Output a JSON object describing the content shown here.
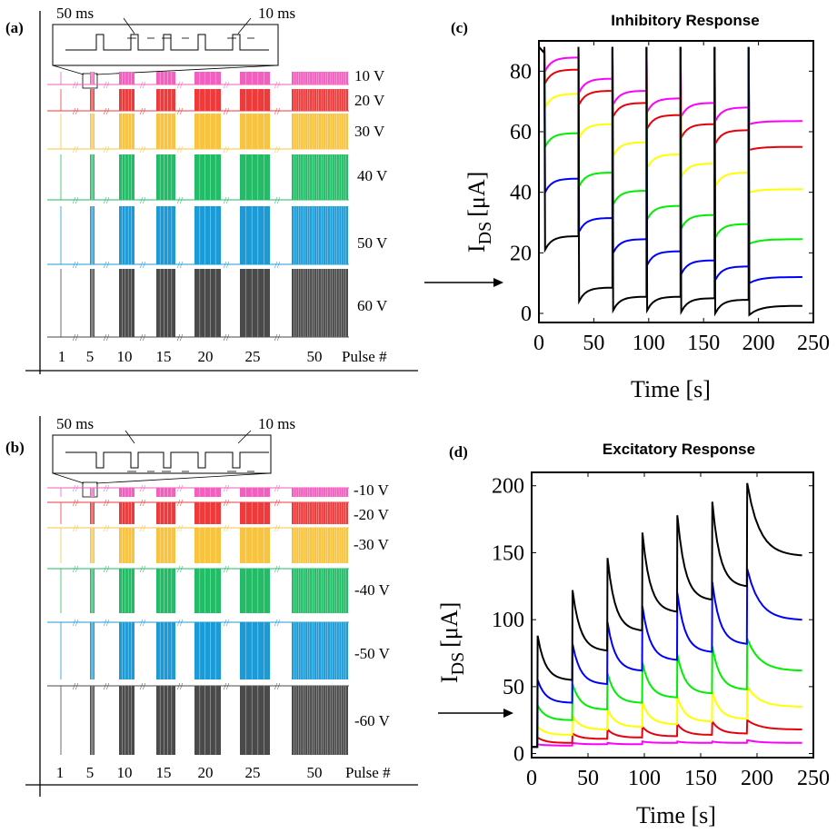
{
  "panels": {
    "a": {
      "label": "(a)",
      "inset_left_label": "50 ms",
      "inset_right_label": "10 ms",
      "voltages": [
        "10 V",
        "20 V",
        "30 V",
        "40 V",
        "50 V",
        "60 V"
      ],
      "pulse_labels": [
        "1",
        "5",
        "10",
        "15",
        "20",
        "25",
        "50"
      ],
      "pulse_axis_label": "Pulse #"
    },
    "b": {
      "label": "(b)",
      "inset_left_label": "50 ms",
      "inset_right_label": "10 ms",
      "voltages": [
        "-10 V",
        "-20 V",
        "-30 V",
        "-40 V",
        "-50 V",
        "-60 V"
      ],
      "pulse_labels": [
        "1",
        "5",
        "10",
        "15",
        "20",
        "25",
        "50"
      ],
      "pulse_axis_label": "Pulse #"
    }
  },
  "colors": {
    "magenta": "#ff00ff",
    "red": "#e8000b",
    "yellow": "#ffff00",
    "green": "#00ee00",
    "blue": "#0000ff",
    "black": "#000000",
    "pink_pulse": "#f25fbf",
    "red_pulse": "#ee3a3a",
    "yellow_pulse": "#f8c440",
    "green_pulse": "#22bb66",
    "blue_pulse": "#1c9ad6",
    "gray_pulse": "#4a4a4a"
  },
  "chart_data": [
    {
      "panel": "c",
      "panel_label": "(c)",
      "type": "line",
      "title": "Inhibitory Response",
      "xlabel": "Time [s]",
      "ylabel_main": "I",
      "ylabel_sub": "DS",
      "ylabel_unit": "[μA]",
      "xlim": [
        0,
        250
      ],
      "ylim": [
        -3,
        90
      ],
      "xticks": [
        0,
        50,
        100,
        150,
        200,
        250
      ],
      "yticks": [
        0,
        20,
        40,
        60,
        80
      ],
      "pulse_times": [
        5,
        36,
        67,
        98,
        129,
        160,
        191
      ],
      "series": [
        {
          "color": "#ff00ff",
          "pre": 88,
          "levels": [
            82,
            75,
            71,
            68.5,
            67,
            65.5,
            64.5
          ],
          "tail_end": 63.5,
          "dip": 0
        },
        {
          "color": "#e8000b",
          "pre": 88,
          "levels": [
            78,
            71,
            67,
            63,
            60,
            58,
            56
          ],
          "tail_end": 55,
          "dip": -3
        },
        {
          "color": "#ffff00",
          "pre": 88,
          "levels": [
            70,
            60,
            54,
            50,
            47,
            44,
            42
          ],
          "tail_end": 41,
          "dip": -7
        },
        {
          "color": "#00ee00",
          "pre": 88,
          "levels": [
            57,
            44,
            38,
            33,
            30,
            27,
            25
          ],
          "tail_end": 24.5,
          "dip": -13
        },
        {
          "color": "#0000ff",
          "pre": 88,
          "levels": [
            42,
            29,
            22,
            18,
            15,
            13,
            12
          ],
          "tail_end": 12,
          "dip": -15
        },
        {
          "color": "#000000",
          "pre": 88,
          "levels": [
            23,
            6,
            3,
            3,
            2.5,
            2,
            1.5
          ],
          "tail_end": 2.5,
          "dip": -17
        }
      ]
    },
    {
      "panel": "d",
      "panel_label": "(d)",
      "type": "line",
      "title": "Excitatory Response",
      "xlabel": "Time [s]",
      "ylabel_main": "I",
      "ylabel_sub": "DS",
      "ylabel_unit": "[μA]",
      "xlim": [
        0,
        250
      ],
      "ylim": [
        -3,
        210
      ],
      "xticks": [
        0,
        50,
        100,
        150,
        200,
        250
      ],
      "yticks": [
        0,
        50,
        100,
        150,
        200
      ],
      "pulse_times": [
        5,
        36,
        67,
        98,
        129,
        160,
        191
      ],
      "series": [
        {
          "color": "#ff00ff",
          "base": 5,
          "peaks": [
            7,
            8,
            8,
            9,
            9,
            9,
            10
          ],
          "troughs": [
            6,
            7,
            7,
            8,
            8,
            8
          ],
          "tail_end": 8
        },
        {
          "color": "#e8000b",
          "base": 5,
          "peaks": [
            12,
            15,
            18,
            20,
            22,
            24,
            25
          ],
          "troughs": [
            8,
            11,
            12,
            13,
            14,
            15
          ],
          "tail_end": 18
        },
        {
          "color": "#ffff00",
          "base": 5,
          "peaks": [
            20,
            28,
            33,
            38,
            42,
            46,
            50
          ],
          "troughs": [
            14,
            18,
            20,
            22,
            24,
            26
          ],
          "tail_end": 35
        },
        {
          "color": "#00ee00",
          "base": 5,
          "peaks": [
            36,
            52,
            60,
            68,
            74,
            80,
            86
          ],
          "troughs": [
            25,
            33,
            38,
            42,
            45,
            48
          ],
          "tail_end": 62
        },
        {
          "color": "#0000ff",
          "base": 5,
          "peaks": [
            55,
            82,
            98,
            110,
            120,
            128,
            138
          ],
          "troughs": [
            38,
            52,
            62,
            70,
            76,
            82
          ],
          "tail_end": 100
        },
        {
          "color": "#000000",
          "base": 5,
          "peaks": [
            88,
            122,
            146,
            165,
            178,
            188,
            202
          ],
          "troughs": [
            55,
            77,
            92,
            106,
            115,
            125
          ],
          "tail_end": 148
        }
      ]
    }
  ]
}
